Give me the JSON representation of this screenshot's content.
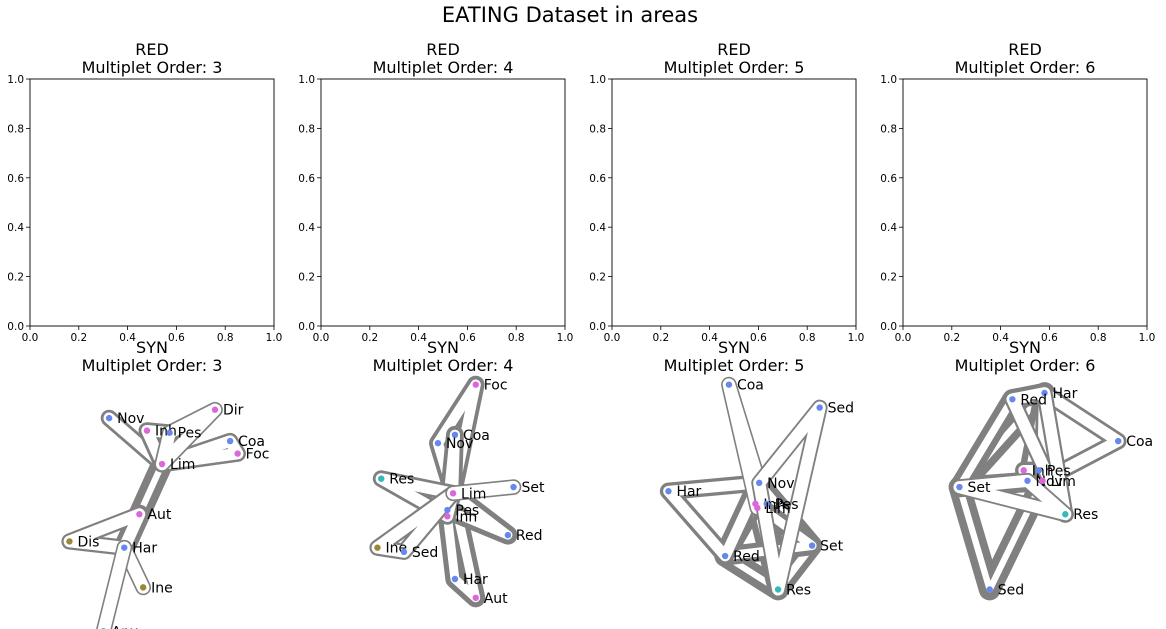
{
  "figure": {
    "title": "EATING Dataset in areas"
  },
  "chart_data": [
    {
      "type": "scatter",
      "panel": "red-3",
      "title": "RED",
      "subtitle": "Multiplet Order: 3",
      "xlim": [
        0,
        1
      ],
      "ylim": [
        0,
        1
      ],
      "xticks": [
        "0.0",
        "0.2",
        "0.4",
        "0.6",
        "0.8",
        "1.0"
      ],
      "yticks": [
        "0.0",
        "0.2",
        "0.4",
        "0.6",
        "0.8",
        "1.0"
      ],
      "points": []
    },
    {
      "type": "scatter",
      "panel": "red-4",
      "title": "RED",
      "subtitle": "Multiplet Order: 4",
      "xlim": [
        0,
        1
      ],
      "ylim": [
        0,
        1
      ],
      "xticks": [
        "0.0",
        "0.2",
        "0.4",
        "0.6",
        "0.8",
        "1.0"
      ],
      "yticks": [
        "0.0",
        "0.2",
        "0.4",
        "0.6",
        "0.8",
        "1.0"
      ],
      "points": []
    },
    {
      "type": "scatter",
      "panel": "red-5",
      "title": "RED",
      "subtitle": "Multiplet Order: 5",
      "xlim": [
        0,
        1
      ],
      "ylim": [
        0,
        1
      ],
      "xticks": [
        "0.0",
        "0.2",
        "0.4",
        "0.6",
        "0.8",
        "1.0"
      ],
      "yticks": [
        "0.0",
        "0.2",
        "0.4",
        "0.6",
        "0.8",
        "1.0"
      ],
      "points": []
    },
    {
      "type": "scatter",
      "panel": "red-6",
      "title": "RED",
      "subtitle": "Multiplet Order: 6",
      "xlim": [
        0,
        1
      ],
      "ylim": [
        0,
        1
      ],
      "xticks": [
        "0.0",
        "0.2",
        "0.4",
        "0.6",
        "0.8",
        "1.0"
      ],
      "yticks": [
        "0.0",
        "0.2",
        "0.4",
        "0.6",
        "0.8",
        "1.0"
      ],
      "points": []
    },
    {
      "type": "network",
      "panel": "syn-3",
      "title": "SYN",
      "subtitle": "Multiplet Order: 3",
      "nodes": [
        {
          "id": "Nov",
          "x": 0.26,
          "y": 0.88,
          "color": "#6688ee"
        },
        {
          "id": "Inh",
          "x": 0.46,
          "y": 0.82,
          "color": "#dd66dd"
        },
        {
          "id": "Pes",
          "x": 0.58,
          "y": 0.81,
          "color": "#6688ee"
        },
        {
          "id": "Dir",
          "x": 0.82,
          "y": 0.92,
          "color": "#dd66dd"
        },
        {
          "id": "Coa",
          "x": 0.9,
          "y": 0.77,
          "color": "#6688ee"
        },
        {
          "id": "Foc",
          "x": 0.94,
          "y": 0.71,
          "color": "#dd66dd"
        },
        {
          "id": "Lim",
          "x": 0.54,
          "y": 0.66,
          "color": "#dd66dd"
        },
        {
          "id": "Aut",
          "x": 0.42,
          "y": 0.42,
          "color": "#dd66dd"
        },
        {
          "id": "Dis",
          "x": 0.05,
          "y": 0.29,
          "color": "#998833"
        },
        {
          "id": "Har",
          "x": 0.34,
          "y": 0.26,
          "color": "#6688ee"
        },
        {
          "id": "Ine",
          "x": 0.44,
          "y": 0.07,
          "color": "#998833"
        },
        {
          "id": "Anx",
          "x": 0.23,
          "y": -0.14,
          "color": "#33bbbb"
        }
      ],
      "hyperedges": [
        {
          "nodes": [
            "Lim",
            "Har"
          ],
          "weight": 5
        },
        {
          "nodes": [
            "Aut",
            "Har"
          ],
          "weight": 3
        },
        {
          "nodes": [
            "Nov",
            "Lim"
          ],
          "weight": 1.2
        },
        {
          "nodes": [
            "Inh",
            "Pes",
            "Lim"
          ],
          "weight": 1.2
        },
        {
          "nodes": [
            "Coa",
            "Foc",
            "Lim"
          ],
          "weight": 1
        },
        {
          "nodes": [
            "Dis",
            "Har",
            "Aut"
          ],
          "weight": 0.8
        },
        {
          "nodes": [
            "Dir",
            "Pes",
            "Lim"
          ],
          "weight": 0.4
        },
        {
          "nodes": [
            "Ine",
            "Har"
          ],
          "weight": 0.3
        },
        {
          "nodes": [
            "Anx",
            "Har"
          ],
          "weight": 0.3
        }
      ]
    },
    {
      "type": "network",
      "panel": "syn-4",
      "title": "SYN",
      "subtitle": "Multiplet Order: 4",
      "nodes": [
        {
          "id": "Foc",
          "x": 0.66,
          "y": 1.04,
          "color": "#dd66dd"
        },
        {
          "id": "Coa",
          "x": 0.55,
          "y": 0.8,
          "color": "#6688ee"
        },
        {
          "id": "Nov",
          "x": 0.46,
          "y": 0.76,
          "color": "#6688ee"
        },
        {
          "id": "Res",
          "x": 0.16,
          "y": 0.59,
          "color": "#33bbbb"
        },
        {
          "id": "Set",
          "x": 0.86,
          "y": 0.55,
          "color": "#6688ee"
        },
        {
          "id": "Lim",
          "x": 0.54,
          "y": 0.52,
          "color": "#dd66dd"
        },
        {
          "id": "Pes",
          "x": 0.51,
          "y": 0.44,
          "color": "#6688ee"
        },
        {
          "id": "Inh",
          "x": 0.51,
          "y": 0.41,
          "color": "#dd66dd"
        },
        {
          "id": "Red",
          "x": 0.83,
          "y": 0.32,
          "color": "#6688ee"
        },
        {
          "id": "Ine",
          "x": 0.14,
          "y": 0.26,
          "color": "#998833"
        },
        {
          "id": "Sed",
          "x": 0.28,
          "y": 0.24,
          "color": "#6688ee"
        },
        {
          "id": "Har",
          "x": 0.55,
          "y": 0.11,
          "color": "#6688ee"
        },
        {
          "id": "Aut",
          "x": 0.66,
          "y": 0.02,
          "color": "#dd66dd"
        }
      ],
      "hyperedges": [
        {
          "nodes": [
            "Lim",
            "Pes",
            "Inh",
            "Har",
            "Aut"
          ],
          "weight": 3
        },
        {
          "nodes": [
            "Lim",
            "Pes",
            "Red"
          ],
          "weight": 3
        },
        {
          "nodes": [
            "Nov",
            "Lim",
            "Foc"
          ],
          "weight": 2
        },
        {
          "nodes": [
            "Coa",
            "Lim",
            "Pes"
          ],
          "weight": 2
        },
        {
          "nodes": [
            "Res",
            "Lim",
            "Inh"
          ],
          "weight": 1.2
        },
        {
          "nodes": [
            "Ine",
            "Sed",
            "Lim"
          ],
          "weight": 0.8
        },
        {
          "nodes": [
            "Set",
            "Lim"
          ],
          "weight": 0.3
        }
      ]
    },
    {
      "type": "network",
      "panel": "syn-5",
      "title": "SYN",
      "subtitle": "Multiplet Order: 5",
      "nodes": [
        {
          "id": "Coa",
          "x": 0.46,
          "y": 1.04,
          "color": "#6688ee"
        },
        {
          "id": "Sed",
          "x": 0.94,
          "y": 0.93,
          "color": "#6688ee"
        },
        {
          "id": "Nov",
          "x": 0.62,
          "y": 0.57,
          "color": "#6688ee"
        },
        {
          "id": "Har",
          "x": 0.14,
          "y": 0.53,
          "color": "#6688ee"
        },
        {
          "id": "Inh",
          "x": 0.6,
          "y": 0.47,
          "color": "#dd66dd"
        },
        {
          "id": "Pes",
          "x": 0.66,
          "y": 0.47,
          "color": "#6688ee"
        },
        {
          "id": "Lim",
          "x": 0.61,
          "y": 0.45,
          "color": "#dd66dd"
        },
        {
          "id": "Set",
          "x": 0.9,
          "y": 0.27,
          "color": "#6688ee"
        },
        {
          "id": "Red",
          "x": 0.44,
          "y": 0.22,
          "color": "#6688ee"
        },
        {
          "id": "Res",
          "x": 0.72,
          "y": 0.06,
          "color": "#33bbbb"
        }
      ],
      "hyperedges": [
        {
          "nodes": [
            "Red",
            "Nov",
            "Pes",
            "Res"
          ],
          "weight": 5
        },
        {
          "nodes": [
            "Nov",
            "Set",
            "Res",
            "Lim"
          ],
          "weight": 4
        },
        {
          "nodes": [
            "Red",
            "Inh",
            "Set"
          ],
          "weight": 3
        },
        {
          "nodes": [
            "Har",
            "Nov",
            "Red"
          ],
          "weight": 1.6
        },
        {
          "nodes": [
            "Coa",
            "Nov",
            "Lim"
          ],
          "weight": 0.3
        },
        {
          "nodes": [
            "Sed",
            "Nov",
            "Res"
          ],
          "weight": 0.5
        }
      ]
    },
    {
      "type": "network",
      "panel": "syn-6",
      "title": "SYN",
      "subtitle": "Multiplet Order: 6",
      "nodes": [
        {
          "id": "Har",
          "x": 0.59,
          "y": 1.0,
          "color": "#6688ee"
        },
        {
          "id": "Red",
          "x": 0.42,
          "y": 0.97,
          "color": "#6688ee"
        },
        {
          "id": "Coa",
          "x": 0.98,
          "y": 0.77,
          "color": "#6688ee"
        },
        {
          "id": "Inh",
          "x": 0.48,
          "y": 0.63,
          "color": "#dd66dd"
        },
        {
          "id": "Pes",
          "x": 0.56,
          "y": 0.63,
          "color": "#6688ee"
        },
        {
          "id": "Nov",
          "x": 0.5,
          "y": 0.58,
          "color": "#6688ee"
        },
        {
          "id": "Lim",
          "x": 0.58,
          "y": 0.58,
          "color": "#dd66dd"
        },
        {
          "id": "Set",
          "x": 0.14,
          "y": 0.55,
          "color": "#6688ee"
        },
        {
          "id": "Res",
          "x": 0.7,
          "y": 0.42,
          "color": "#33bbbb"
        },
        {
          "id": "Sed",
          "x": 0.3,
          "y": 0.06,
          "color": "#6688ee"
        }
      ],
      "hyperedges": [
        {
          "nodes": [
            "Set",
            "Har",
            "Pes",
            "Lim",
            "Sed"
          ],
          "weight": 5
        },
        {
          "nodes": [
            "Set",
            "Red",
            "Har",
            "Nov",
            "Lim"
          ],
          "weight": 4
        },
        {
          "nodes": [
            "Inh",
            "Pes",
            "Nov",
            "Lim",
            "Res"
          ],
          "weight": 1.6
        },
        {
          "nodes": [
            "Coa",
            "Har",
            "Lim"
          ],
          "weight": 1.2
        },
        {
          "nodes": [
            "Red",
            "Har",
            "Res"
          ],
          "weight": 0.8
        },
        {
          "nodes": [
            "Set",
            "Nov",
            "Res"
          ],
          "weight": 0.5
        }
      ]
    }
  ]
}
